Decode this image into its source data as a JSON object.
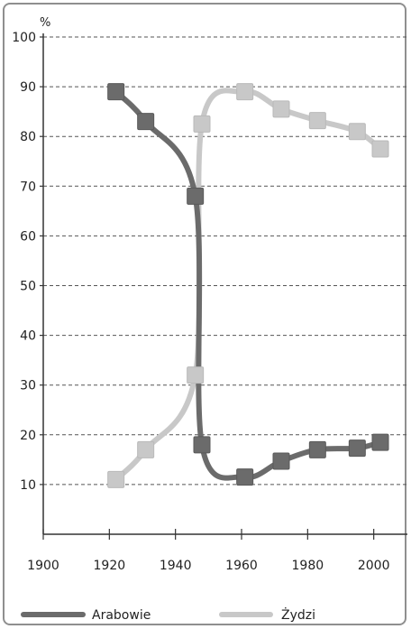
{
  "chart_data": {
    "type": "line",
    "title": "",
    "ylabel": "%",
    "xlabel": "",
    "x_ticks": [
      1900,
      1920,
      1940,
      1960,
      1980,
      2000
    ],
    "y_ticks": [
      10,
      20,
      30,
      40,
      50,
      60,
      70,
      80,
      90,
      100
    ],
    "xlim": [
      1900,
      2008
    ],
    "ylim": [
      0,
      100
    ],
    "grid": "horizontal-dashed",
    "legend_position": "bottom",
    "series": [
      {
        "name": "Arabowie",
        "color": "#6b6b6b",
        "x": [
          1922,
          1931,
          1946,
          1948,
          1961,
          1972,
          1983,
          1995,
          2002
        ],
        "y": [
          89,
          83,
          68,
          18,
          11.5,
          14.7,
          17,
          17.3,
          18.5
        ]
      },
      {
        "name": "Żydzi",
        "color": "#c8c8c8",
        "x": [
          1922,
          1931,
          1946,
          1948,
          1961,
          1972,
          1983,
          1995,
          2002
        ],
        "y": [
          11,
          17,
          32,
          82.5,
          89,
          85.5,
          83.2,
          81,
          77.5
        ]
      }
    ]
  }
}
